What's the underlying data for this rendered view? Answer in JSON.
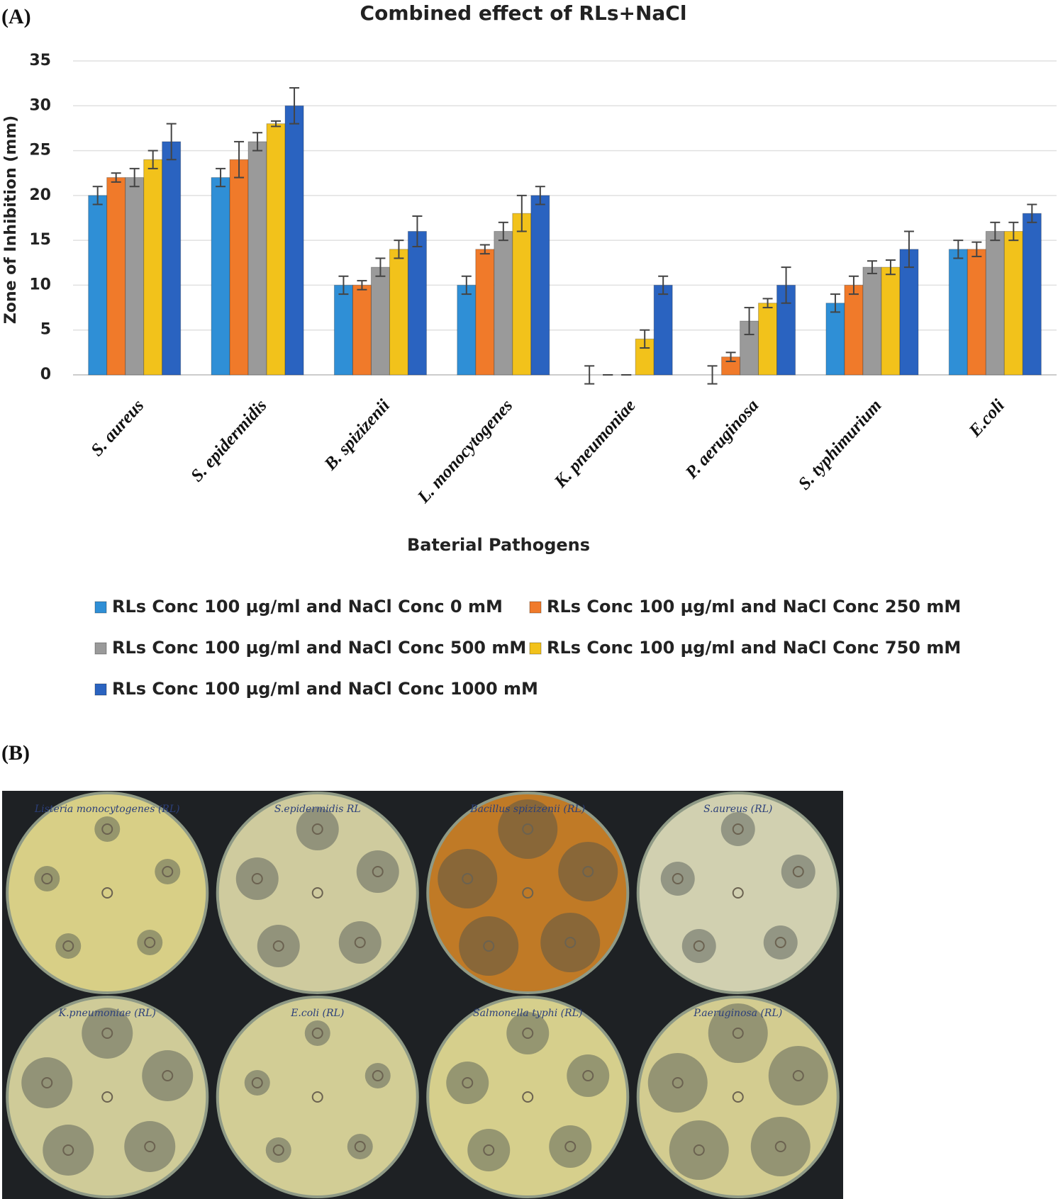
{
  "panel_labels": [
    "(A)",
    "(B)"
  ],
  "chart_data": {
    "type": "bar",
    "title": "Combined effect of RLs+NaCl",
    "x_label": "Baterial Pathogens",
    "y_label": "Zone of Inhibition (mm)",
    "categories": [
      "S. aureus",
      "S. epidermidis",
      "B. spizizenii",
      "L. monocytogenes",
      "K. pneumoniae",
      "P. aeruginosa",
      "S. typhimurium",
      "E.coli"
    ],
    "series": [
      {
        "name": "RLs Conc 100 µg/ml and NaCl Conc 0 mM",
        "color": "#2f8fd6",
        "values": [
          20,
          22,
          10,
          10,
          0,
          0,
          8,
          14
        ],
        "errors": [
          1,
          1,
          1,
          1,
          1,
          1,
          1,
          1
        ]
      },
      {
        "name": "RLs Conc 100 µg/ml and NaCl Conc 250 mM",
        "color": "#f07a2a",
        "values": [
          22,
          24,
          10,
          14,
          0,
          2,
          10,
          14
        ],
        "errors": [
          0.5,
          2,
          0.5,
          0.5,
          0,
          0.5,
          1,
          0.8
        ]
      },
      {
        "name": "RLs Conc 100 µg/ml and NaCl Conc 500 mM",
        "color": "#9a9a9a",
        "values": [
          22,
          26,
          12,
          16,
          0,
          6,
          12,
          16
        ],
        "errors": [
          1,
          1,
          1,
          1,
          0,
          1.5,
          0.7,
          1
        ]
      },
      {
        "name": "RLs Conc 100 µg/ml and NaCl Conc 750 mM",
        "color": "#f2c21b",
        "values": [
          24,
          28,
          14,
          18,
          4,
          8,
          12,
          16
        ],
        "errors": [
          1,
          0.3,
          1,
          2,
          1,
          0.5,
          0.8,
          1
        ]
      },
      {
        "name": "RLs Conc 100 µg/ml and NaCl Conc 1000 mM",
        "color": "#2a63c0",
        "values": [
          26,
          30,
          16,
          20,
          10,
          10,
          14,
          18
        ],
        "errors": [
          2,
          2,
          1.7,
          1,
          1,
          2,
          2,
          1
        ]
      }
    ],
    "ylim": [
      0,
      35
    ],
    "yticks": [
      0,
      5,
      10,
      15,
      20,
      25,
      30,
      35
    ],
    "grid": true,
    "legend": "bottom"
  },
  "plates": [
    {
      "label": "Listeria monocytogenes (RL)"
    },
    {
      "label": "S.epidermidis RL"
    },
    {
      "label": "Bacillus spizizenii (RL)"
    },
    {
      "label": "S.aureus (RL)"
    },
    {
      "label": "K.pneumoniae (RL)"
    },
    {
      "label": "E.coli (RL)"
    },
    {
      "label": "Salmonella typhi (RL)"
    },
    {
      "label": "P.aeruginosa (RL)"
    }
  ]
}
